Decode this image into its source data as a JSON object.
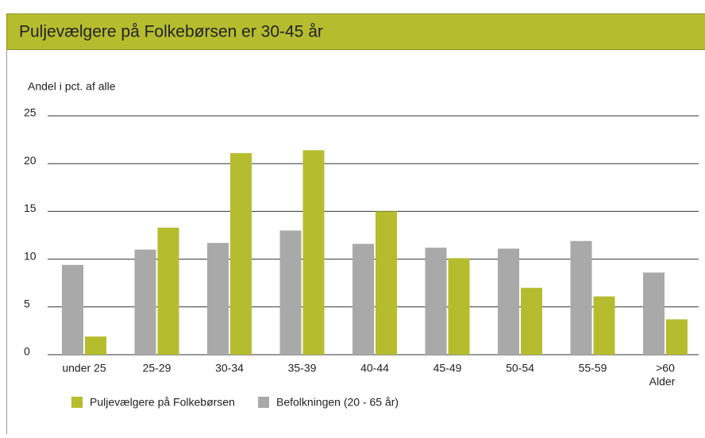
{
  "chart_data": {
    "type": "bar",
    "title": "Puljevælgere på Folkebørsen er 30-45 år",
    "y_label": "Andel i pct. af alle",
    "x_label": "Alder",
    "categories": [
      "under 25",
      "25-29",
      "30-34",
      "35-39",
      "40-44",
      "45-49",
      "50-54",
      "55-59",
      ">60"
    ],
    "series": [
      {
        "name": "Puljevælgere på Folkebørsen",
        "color": "#b5bd2f",
        "values": [
          1.9,
          13.3,
          21.1,
          21.4,
          15.0,
          10.1,
          7.0,
          6.1,
          3.7
        ]
      },
      {
        "name": "Befolkningen (20 - 65 år)",
        "color": "#a9a9a9",
        "values": [
          9.4,
          11.0,
          11.7,
          13.0,
          11.6,
          11.2,
          11.1,
          11.9,
          8.6
        ]
      }
    ],
    "ylim": [
      0,
      25
    ],
    "yticks": [
      0,
      5,
      10,
      15,
      20,
      25
    ],
    "grid": true,
    "legend": "bottom"
  }
}
